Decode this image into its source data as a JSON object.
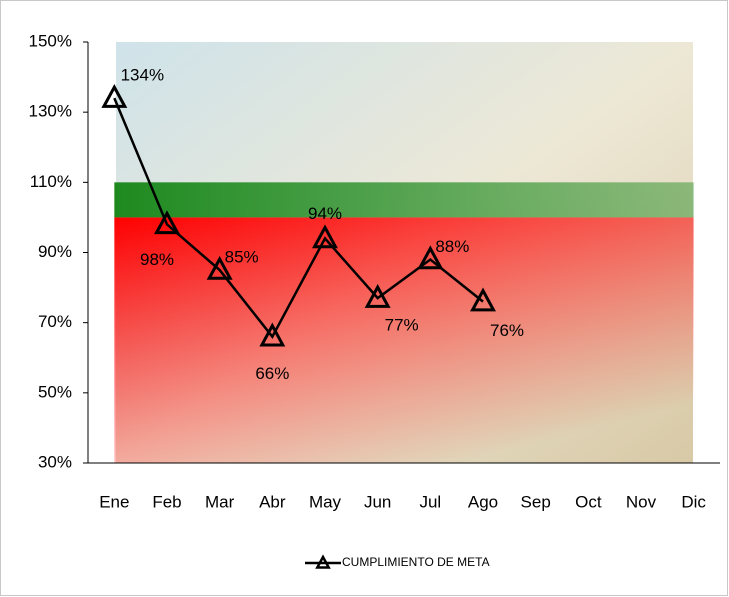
{
  "chart_data": {
    "type": "line",
    "categories": [
      "Ene",
      "Feb",
      "Mar",
      "Abr",
      "May",
      "Jun",
      "Jul",
      "Ago",
      "Sep",
      "Oct",
      "Nov",
      "Dic"
    ],
    "series": [
      {
        "name": "CUMPLIMIENTO DE META",
        "color": "#000000",
        "values": [
          134,
          98,
          85,
          66,
          94,
          77,
          88,
          76,
          null,
          null,
          null,
          null
        ],
        "value_labels": [
          "134%",
          "98%",
          "85%",
          "66%",
          "94%",
          "77%",
          "88%",
          "76%",
          null,
          null,
          null,
          null
        ]
      }
    ],
    "ylim": [
      30,
      150
    ],
    "yticks": [
      {
        "value": 30,
        "label": "30%"
      },
      {
        "value": 50,
        "label": "50%"
      },
      {
        "value": 70,
        "label": "70%"
      },
      {
        "value": 90,
        "label": "90%"
      },
      {
        "value": 110,
        "label": "110%"
      },
      {
        "value": 130,
        "label": "130%"
      },
      {
        "value": 150,
        "label": "150%"
      }
    ],
    "bands": [
      {
        "from": 30,
        "to": 100,
        "color": "#ff0000"
      },
      {
        "from": 100,
        "to": 110,
        "color": "#1e8a1e"
      }
    ],
    "legend": "bottom"
  }
}
